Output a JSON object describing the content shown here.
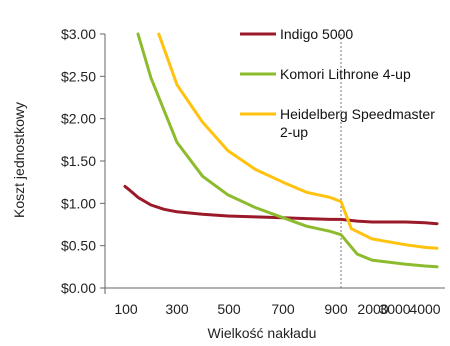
{
  "chart_data": {
    "type": "line",
    "xlabel": "Wielkość nakładu",
    "ylabel": "Koszt jednostkowy",
    "x_axis_scale": "categorical (non-uniform, break near 950)",
    "categories": [
      "100",
      "300",
      "500",
      "700",
      "900",
      "2000",
      "3000",
      "4000"
    ],
    "x_tick_labels": [
      "100",
      "300",
      "500",
      "700",
      "900",
      "2000",
      "3000",
      "4000"
    ],
    "y_tick_labels": [
      "$0.00",
      "$0.50",
      "$1.00",
      "$1.50",
      "$2.00",
      "$2.50",
      "$3.00"
    ],
    "ylim": [
      0,
      3.0
    ],
    "y_ticks": [
      0,
      0.5,
      1.0,
      1.5,
      2.0,
      2.5,
      3.0
    ],
    "reference_line": {
      "x": 950,
      "style": "dotted"
    },
    "legend_placement": "top-right",
    "grid": false,
    "series": [
      {
        "name": "Indigo 5000",
        "color": "#9B1A2A",
        "points": [
          [
            100,
            1.2
          ],
          [
            120,
            1.15
          ],
          [
            150,
            1.07
          ],
          [
            200,
            0.98
          ],
          [
            250,
            0.93
          ],
          [
            300,
            0.9
          ],
          [
            400,
            0.87
          ],
          [
            500,
            0.85
          ],
          [
            600,
            0.84
          ],
          [
            700,
            0.83
          ],
          [
            800,
            0.82
          ],
          [
            900,
            0.81
          ],
          [
            950,
            0.81
          ],
          [
            1500,
            0.79
          ],
          [
            2000,
            0.78
          ],
          [
            3000,
            0.78
          ],
          [
            4000,
            0.77
          ],
          [
            4500,
            0.76
          ]
        ]
      },
      {
        "name": "Komori Lithrone 4-up",
        "color": "#8DBB2E",
        "points": [
          [
            150,
            3.0
          ],
          [
            200,
            2.48
          ],
          [
            300,
            1.72
          ],
          [
            400,
            1.32
          ],
          [
            500,
            1.1
          ],
          [
            600,
            0.95
          ],
          [
            700,
            0.83
          ],
          [
            800,
            0.73
          ],
          [
            900,
            0.67
          ],
          [
            950,
            0.63
          ],
          [
            1500,
            0.4
          ],
          [
            2000,
            0.33
          ],
          [
            3000,
            0.28
          ],
          [
            4000,
            0.26
          ],
          [
            4500,
            0.25
          ]
        ]
      },
      {
        "name": "Heidelberg Speedmaster 2-up",
        "color": "#FFC20E",
        "points": [
          [
            230,
            3.0
          ],
          [
            300,
            2.4
          ],
          [
            400,
            1.96
          ],
          [
            500,
            1.62
          ],
          [
            600,
            1.4
          ],
          [
            700,
            1.25
          ],
          [
            800,
            1.13
          ],
          [
            900,
            1.07
          ],
          [
            950,
            1.02
          ],
          [
            1300,
            0.7
          ],
          [
            2000,
            0.58
          ],
          [
            3000,
            0.51
          ],
          [
            4000,
            0.48
          ],
          [
            4500,
            0.47
          ]
        ]
      }
    ]
  }
}
